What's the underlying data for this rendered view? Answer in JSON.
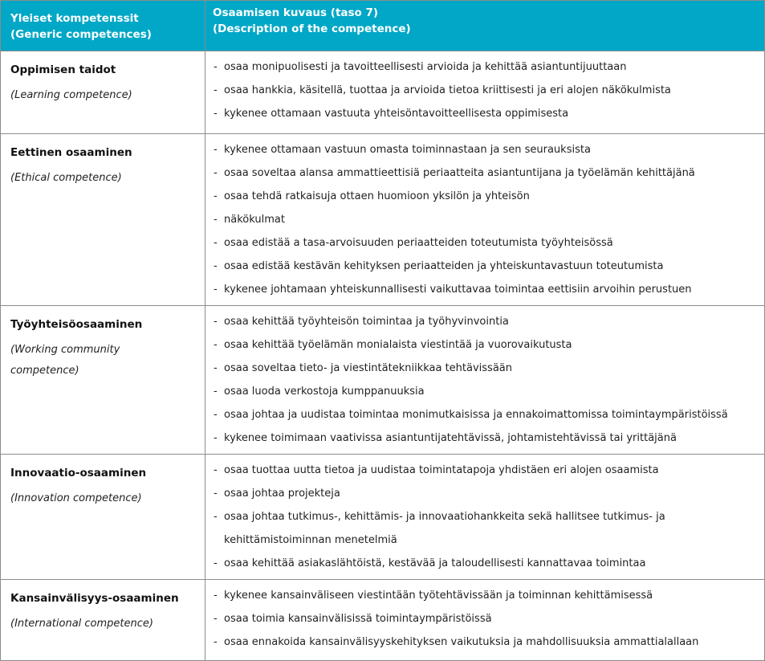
{
  "colors": {
    "header_bg": "#00a7c6",
    "header_text": "#ffffff",
    "border": "#8c8c8c",
    "body_text": "#1f1f1f"
  },
  "table": {
    "header": {
      "col1_line1": "Yleiset kompetenssit",
      "col1_line2": "(Generic competences)",
      "col2_line1": "Osaamisen kuvaus (taso 7)",
      "col2_line2": "(Description of the competence)"
    },
    "rows": [
      {
        "title": "Oppimisen taidot",
        "subtitle": "(Learning competence)",
        "bullets": [
          "osaa monipuolisesti ja tavoitteellisesti arvioida ja kehittää asiantuntijuuttaan",
          "osaa hankkia, käsitellä, tuottaa ja arvioida tietoa kriittisesti ja eri alojen näkökulmista",
          "kykenee ottamaan vastuuta yhteisöntavoitteellisesta oppimisesta"
        ]
      },
      {
        "title": "Eettinen osaaminen",
        "subtitle": "(Ethical competence)",
        "bullets": [
          "kykenee ottamaan vastuun omasta toiminnastaan ja sen seurauksista",
          "osaa soveltaa alansa ammattieettisiä periaatteita asiantuntijana ja työelämän kehittäjänä",
          "osaa tehdä ratkaisuja ottaen huomioon yksilön ja yhteisön",
          "näkökulmat",
          "osaa edistää a tasa-arvoisuuden periaatteiden toteutumista työyhteisössä",
          "osaa edistää kestävän kehityksen periaatteiden ja yhteiskuntavastuun toteutumista",
          "kykenee johtamaan yhteiskunnallisesti vaikuttavaa toimintaa eettisiin arvoihin perustuen"
        ]
      },
      {
        "title": "Työyhteisöosaaminen",
        "subtitle": "(Working community competence)",
        "bullets": [
          "osaa kehittää työyhteisön toimintaa ja työhyvinvointia",
          "osaa kehittää työelämän monialaista viestintää ja vuorovaikutusta",
          "osaa soveltaa tieto- ja viestintätekniikkaa tehtävissään",
          "osaa luoda verkostoja kumppanuuksia",
          "osaa johtaa ja uudistaa toimintaa monimutkaisissa ja ennakoimattomissa toimintaympäristöissä",
          "kykenee toimimaan vaativissa asiantuntijatehtävissä, johtamistehtävissä tai yrittäjänä"
        ]
      },
      {
        "title": "Innovaatio-osaaminen",
        "subtitle": "(Innovation competence)",
        "bullets": [
          "osaa tuottaa uutta tietoa ja uudistaa toimintatapoja yhdistäen eri alojen osaamista",
          "osaa johtaa projekteja",
          "osaa johtaa tutkimus-, kehittämis- ja innovaatiohankkeita sekä hallitsee tutkimus- ja kehittämistoiminnan menetelmiä",
          "osaa kehittää asiakaslähtöistä, kestävää ja taloudellisesti kannattavaa toimintaa"
        ]
      },
      {
        "title": "Kansainvälisyys-osaaminen",
        "subtitle": "(International competence)",
        "bullets": [
          "kykenee kansainväliseen viestintään työtehtävissään ja toiminnan kehittämisessä",
          "osaa toimia kansainvälisissä toimintaympäristöissä",
          "osaa ennakoida kansainvälisyyskehityksen vaikutuksia ja mahdollisuuksia ammattialallaan"
        ]
      }
    ]
  }
}
